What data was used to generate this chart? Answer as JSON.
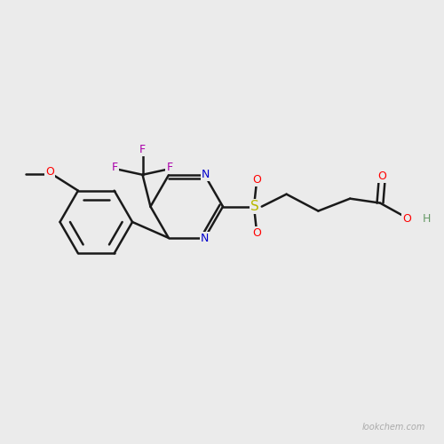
{
  "background_color": "#ebebeb",
  "bond_color": "#1a1a1a",
  "atom_colors": {
    "N": "#0000cc",
    "O": "#ff0000",
    "S": "#b8b800",
    "F": "#aa00aa",
    "C": "#1a1a1a",
    "H": "#669966"
  },
  "watermark": "lookchem.com",
  "watermark_color": "#aaaaaa",
  "figsize": [
    5.0,
    5.0
  ],
  "dpi": 100
}
